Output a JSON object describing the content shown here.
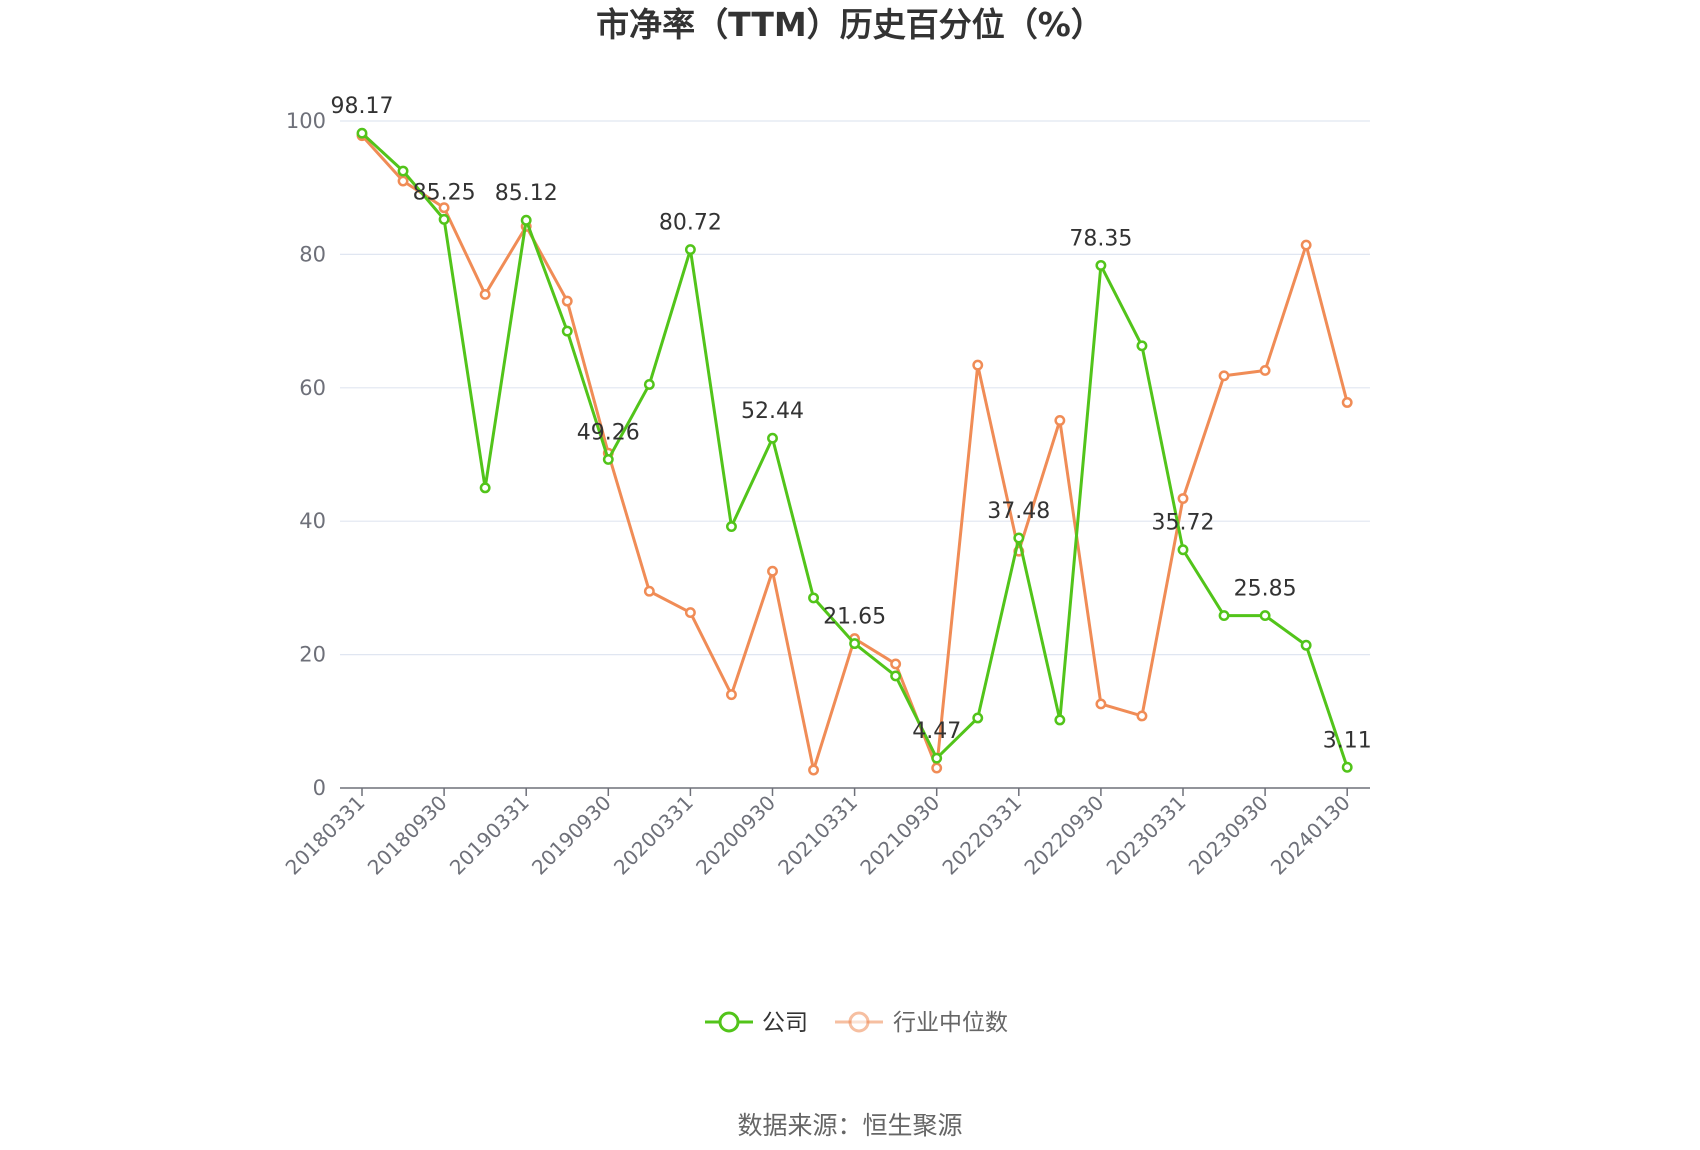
{
  "chart_data": {
    "type": "line",
    "title": "市净率（TTM）历史百分位（%）",
    "source": "数据来源：恒生聚源",
    "ylim": [
      0,
      100
    ],
    "y_ticks": [
      0,
      20,
      40,
      60,
      80,
      100
    ],
    "grid": true,
    "legend_position": "bottom",
    "x": [
      "20180331",
      "20180630",
      "20180930",
      "20181231",
      "20190331",
      "20190630",
      "20190930",
      "20191231",
      "20200331",
      "20200630",
      "20200930",
      "20201231",
      "20210331",
      "20210630",
      "20210930",
      "20211231",
      "20220331",
      "20220630",
      "20220930",
      "20221231",
      "20230331",
      "20230630",
      "20230930",
      "20231231",
      "20240130"
    ],
    "x_tick_labels": [
      "20180331",
      "20180930",
      "20190331",
      "20190930",
      "20200331",
      "20200930",
      "20210331",
      "20210930",
      "20220331",
      "20220930",
      "20230331",
      "20230930",
      "20240130"
    ],
    "series": [
      {
        "name": "公司",
        "color": "#52c41a",
        "values": [
          98.17,
          92.5,
          85.25,
          45.0,
          85.12,
          68.5,
          49.26,
          60.5,
          80.72,
          39.2,
          52.44,
          28.5,
          21.65,
          16.8,
          4.47,
          10.5,
          37.48,
          10.2,
          78.35,
          66.3,
          35.72,
          25.85,
          25.85,
          21.4,
          3.11
        ],
        "labels": [
          "98.17",
          "",
          "85.25",
          "",
          "85.12",
          "",
          "49.26",
          "",
          "80.72",
          "",
          "52.44",
          "",
          "21.65",
          "",
          "4.47",
          "",
          "37.48",
          "",
          "78.35",
          "",
          "35.72",
          "",
          "25.85",
          "",
          "3.11"
        ]
      },
      {
        "name": "行业中位数",
        "color": "#f08c56",
        "values": [
          97.8,
          91.0,
          87.0,
          74.0,
          84.2,
          73.0,
          50.2,
          29.5,
          26.3,
          14.0,
          32.5,
          2.7,
          22.4,
          18.6,
          3.0,
          63.4,
          35.5,
          55.1,
          12.6,
          10.8,
          43.4,
          61.8,
          62.6,
          81.4,
          57.8
        ]
      }
    ]
  }
}
